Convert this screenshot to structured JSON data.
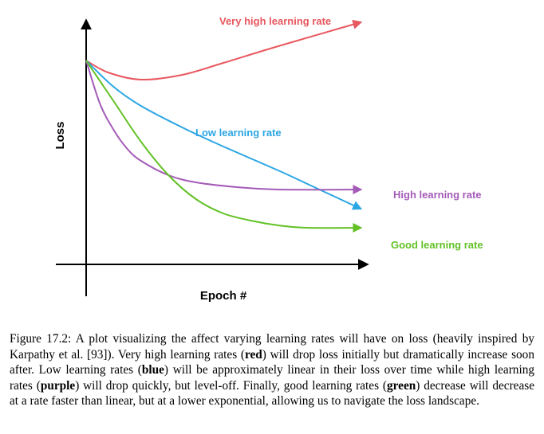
{
  "chart_data": {
    "type": "line",
    "xlabel": "Epoch #",
    "ylabel": "Loss",
    "grid": false,
    "series": [
      {
        "name": "Very high learning rate",
        "color": "#e8585f",
        "x": [
          0,
          0.08,
          0.2,
          0.35,
          0.5,
          0.7,
          1.0
        ],
        "y": [
          0.84,
          0.79,
          0.76,
          0.78,
          0.83,
          0.9,
          1.0
        ]
      },
      {
        "name": "Low learning rate",
        "color": "#2ba6e4",
        "x": [
          0,
          0.1,
          0.2,
          0.35,
          0.5,
          0.7,
          0.85,
          1.0
        ],
        "y": [
          0.84,
          0.73,
          0.65,
          0.56,
          0.48,
          0.38,
          0.3,
          0.22
        ]
      },
      {
        "name": "High learning rate",
        "color": "#a45bb8",
        "x": [
          0,
          0.05,
          0.1,
          0.15,
          0.2,
          0.3,
          0.4,
          0.55,
          0.7,
          1.0
        ],
        "y": [
          0.84,
          0.66,
          0.55,
          0.47,
          0.42,
          0.36,
          0.33,
          0.31,
          0.3,
          0.3
        ]
      },
      {
        "name": "Good learning rate",
        "color": "#62c125",
        "x": [
          0,
          0.1,
          0.2,
          0.3,
          0.4,
          0.5,
          0.6,
          0.7,
          0.8,
          1.0
        ],
        "y": [
          0.84,
          0.67,
          0.5,
          0.36,
          0.26,
          0.2,
          0.17,
          0.15,
          0.14,
          0.14
        ]
      }
    ]
  },
  "caption": {
    "prefix": "Figure 17.2: A plot visualizing the affect varying learning rates will have on loss (heavily inspired by Karpathy et al. [93]). Very high learning rates (",
    "red": "red",
    "t1": ") will drop loss initially but dramatically increase soon after. Low learning rates (",
    "blue": "blue",
    "t2": ") will be approximately linear in their loss over time while high learning rates (",
    "purple": "purple",
    "t3": ") will drop quickly, but level-off. Finally, good learning rates (",
    "green": "green",
    "t4": ") decrease will decrease at a rate faster than linear, but at a lower exponential, allowing us to navigate the loss landscape."
  }
}
